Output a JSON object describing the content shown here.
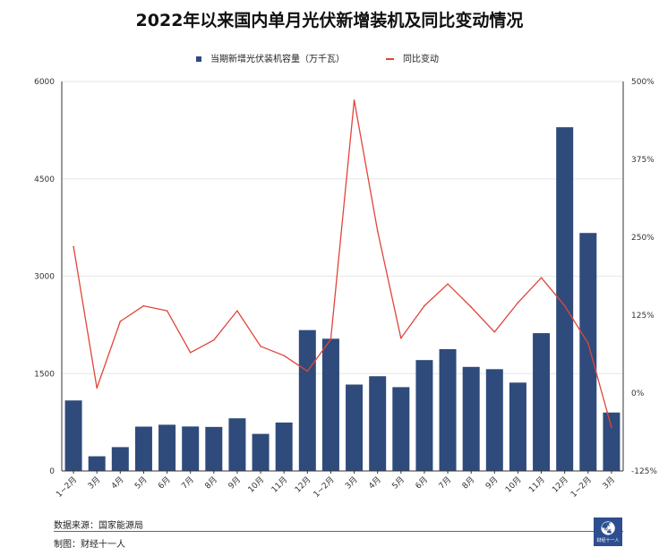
{
  "title": "2022年以来国内单月光伏新增装机及同比变动情况",
  "legend": {
    "bar_label": "当期新增光伏装机容量（万千瓦）",
    "line_label": "同比变动"
  },
  "chart_data": {
    "type": "bar",
    "categories": [
      "1~2月",
      "3月",
      "4月",
      "5月",
      "6月",
      "7月",
      "8月",
      "9月",
      "10月",
      "11月",
      "12月",
      "1~2月",
      "3月",
      "4月",
      "5月",
      "6月",
      "7月",
      "8月",
      "9月",
      "10月",
      "11月",
      "12月",
      "1~2月",
      "3月"
    ],
    "series": [
      {
        "name": "当期新增光伏装机容量（万千瓦）",
        "type": "bar",
        "axis": "left",
        "values": [
          1086,
          226,
          367,
          683,
          712,
          685,
          678,
          811,
          571,
          746,
          2170,
          2037,
          1331,
          1459,
          1291,
          1708,
          1876,
          1603,
          1568,
          1361,
          2123,
          5295,
          3666,
          900
        ]
      },
      {
        "name": "同比变动",
        "type": "line",
        "axis": "right",
        "values": [
          2.35,
          0.08,
          1.15,
          1.4,
          1.32,
          0.65,
          0.85,
          1.32,
          0.75,
          0.6,
          0.35,
          0.86,
          4.7,
          2.6,
          0.88,
          1.4,
          1.75,
          1.38,
          0.98,
          1.45,
          1.85,
          1.4,
          0.8,
          -0.55
        ]
      }
    ],
    "y_left": {
      "min": 0,
      "max": 6000,
      "ticks": [
        0,
        1500,
        3000,
        4500,
        6000
      ],
      "tick_labels": [
        "0",
        "1500",
        "3000",
        "4500",
        "6000"
      ]
    },
    "y_right": {
      "min": -1.25,
      "max": 5.0,
      "ticks": [
        -1.25,
        0,
        1.25,
        2.5,
        3.75,
        5.0
      ],
      "tick_labels": [
        "-125%",
        "0%",
        "125%",
        "250%",
        "375%",
        "500%"
      ]
    },
    "grid": true,
    "legend_position": "top-center",
    "colors": {
      "bar": "#2f4b7c",
      "line": "#e0453a",
      "grid": "#e6e6e6",
      "axis": "#333333"
    }
  },
  "footer": {
    "source": "数据来源：国家能源局",
    "maker": "制图：财经十一人"
  },
  "logo": {
    "text": "财经十一人"
  }
}
